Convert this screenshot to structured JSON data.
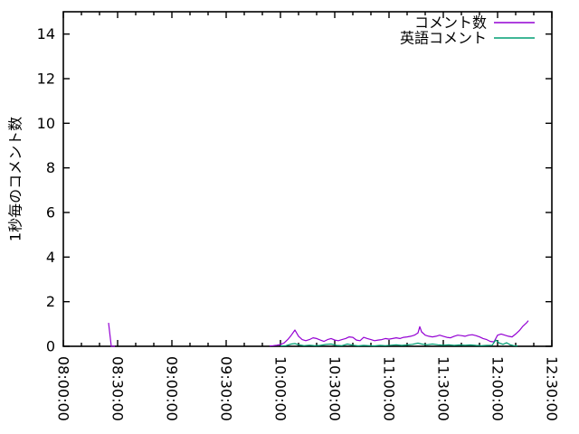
{
  "chart_data": {
    "type": "line",
    "title": "",
    "xlabel": "",
    "ylabel": "1秒毎のコメント数",
    "background_color": "#ffffff",
    "axis_color": "#000000",
    "grid": false,
    "legend_position": "top-right-inside",
    "x_range": [
      "08:00:00",
      "12:30:00"
    ],
    "ylim": [
      0,
      15
    ],
    "y_ticks": [
      0,
      2,
      4,
      6,
      8,
      10,
      12,
      14
    ],
    "x_ticks": [
      "08:00:00",
      "08:30:00",
      "09:00:00",
      "09:30:00",
      "10:00:00",
      "10:30:00",
      "11:00:00",
      "11:30:00",
      "12:00:00",
      "12:30:00"
    ],
    "x_minor_tick_minutes": 10,
    "series": [
      {
        "name": "コメント数",
        "color": "#9400d3",
        "segments": [
          [
            [
              "08:25:00",
              1.05
            ],
            [
              "08:26:30",
              0.0
            ],
            [
              "08:28:30",
              0.0
            ]
          ],
          [
            [
              "09:54",
              0.02
            ],
            [
              "09:56",
              0.03
            ],
            [
              "09:58",
              0.05
            ],
            [
              "10:00",
              0.08
            ],
            [
              "10:02",
              0.15
            ],
            [
              "10:04",
              0.3
            ],
            [
              "10:06",
              0.5
            ],
            [
              "10:08",
              0.73
            ],
            [
              "10:10",
              0.45
            ],
            [
              "10:12",
              0.3
            ],
            [
              "10:14",
              0.25
            ],
            [
              "10:16",
              0.3
            ],
            [
              "10:18",
              0.38
            ],
            [
              "10:20",
              0.35
            ],
            [
              "10:22",
              0.28
            ],
            [
              "10:24",
              0.22
            ],
            [
              "10:26",
              0.3
            ],
            [
              "10:28",
              0.35
            ],
            [
              "10:30",
              0.28
            ],
            [
              "10:32",
              0.25
            ],
            [
              "10:34",
              0.3
            ],
            [
              "10:36",
              0.35
            ],
            [
              "10:38",
              0.42
            ],
            [
              "10:40",
              0.4
            ],
            [
              "10:42",
              0.28
            ],
            [
              "10:44",
              0.25
            ],
            [
              "10:46",
              0.4
            ],
            [
              "10:48",
              0.35
            ],
            [
              "10:50",
              0.3
            ],
            [
              "10:52",
              0.25
            ],
            [
              "10:54",
              0.28
            ],
            [
              "10:56",
              0.3
            ],
            [
              "10:58",
              0.35
            ],
            [
              "11:00",
              0.32
            ],
            [
              "11:02",
              0.35
            ],
            [
              "11:04",
              0.38
            ],
            [
              "11:06",
              0.35
            ],
            [
              "11:08",
              0.4
            ],
            [
              "11:10",
              0.42
            ],
            [
              "11:12",
              0.45
            ],
            [
              "11:14",
              0.5
            ],
            [
              "11:16",
              0.6
            ],
            [
              "11:17",
              0.88
            ],
            [
              "11:18",
              0.65
            ],
            [
              "11:20",
              0.5
            ],
            [
              "11:22",
              0.45
            ],
            [
              "11:24",
              0.42
            ],
            [
              "11:26",
              0.45
            ],
            [
              "11:28",
              0.5
            ],
            [
              "11:30",
              0.45
            ],
            [
              "11:32",
              0.4
            ],
            [
              "11:34",
              0.38
            ],
            [
              "11:36",
              0.45
            ],
            [
              "11:38",
              0.5
            ],
            [
              "11:40",
              0.48
            ],
            [
              "11:42",
              0.45
            ],
            [
              "11:44",
              0.5
            ],
            [
              "11:46",
              0.52
            ],
            [
              "11:48",
              0.48
            ],
            [
              "11:50",
              0.42
            ],
            [
              "11:52",
              0.35
            ],
            [
              "11:54",
              0.3
            ],
            [
              "11:56",
              0.22
            ],
            [
              "11:58",
              0.2
            ],
            [
              "12:00",
              0.5
            ],
            [
              "12:02",
              0.55
            ],
            [
              "12:04",
              0.5
            ],
            [
              "12:06",
              0.45
            ],
            [
              "12:08",
              0.42
            ],
            [
              "12:10",
              0.55
            ],
            [
              "12:12",
              0.7
            ],
            [
              "12:14",
              0.9
            ],
            [
              "12:16",
              1.05
            ],
            [
              "12:17",
              1.15
            ]
          ]
        ]
      },
      {
        "name": "英語コメント",
        "color": "#009e73",
        "segments": [
          [
            [
              "10:00",
              0.02
            ],
            [
              "10:03",
              0.03
            ],
            [
              "10:06",
              0.1
            ],
            [
              "10:08",
              0.12
            ],
            [
              "10:10",
              0.07
            ],
            [
              "10:13",
              0.03
            ],
            [
              "10:16",
              0.05
            ],
            [
              "10:19",
              0.03
            ],
            [
              "10:22",
              0.04
            ],
            [
              "10:25",
              0.08
            ],
            [
              "10:28",
              0.1
            ],
            [
              "10:31",
              0.04
            ],
            [
              "10:34",
              0.03
            ],
            [
              "10:37",
              0.1
            ],
            [
              "10:40",
              0.05
            ],
            [
              "10:43",
              0.02
            ],
            [
              "10:46",
              0.04
            ],
            [
              "10:49",
              0.03
            ],
            [
              "10:52",
              0.02
            ],
            [
              "10:55",
              0.04
            ],
            [
              "10:58",
              0.03
            ],
            [
              "11:01",
              0.05
            ],
            [
              "11:04",
              0.07
            ],
            [
              "11:07",
              0.04
            ],
            [
              "11:10",
              0.06
            ],
            [
              "11:13",
              0.09
            ],
            [
              "11:16",
              0.14
            ],
            [
              "11:18",
              0.1
            ],
            [
              "11:21",
              0.07
            ],
            [
              "11:24",
              0.1
            ],
            [
              "11:27",
              0.07
            ],
            [
              "11:30",
              0.05
            ],
            [
              "11:33",
              0.07
            ],
            [
              "11:36",
              0.04
            ],
            [
              "11:39",
              0.06
            ],
            [
              "11:42",
              0.05
            ],
            [
              "11:45",
              0.06
            ],
            [
              "11:48",
              0.04
            ],
            [
              "11:51",
              0.03
            ],
            [
              "11:54",
              0.04
            ],
            [
              "11:57",
              0.05
            ],
            [
              "11:59",
              0.28
            ],
            [
              "12:01",
              0.14
            ],
            [
              "12:03",
              0.09
            ],
            [
              "12:05",
              0.16
            ],
            [
              "12:07",
              0.07
            ],
            [
              "12:09",
              0.03
            ],
            [
              "12:11",
              0.02
            ]
          ]
        ]
      }
    ]
  }
}
